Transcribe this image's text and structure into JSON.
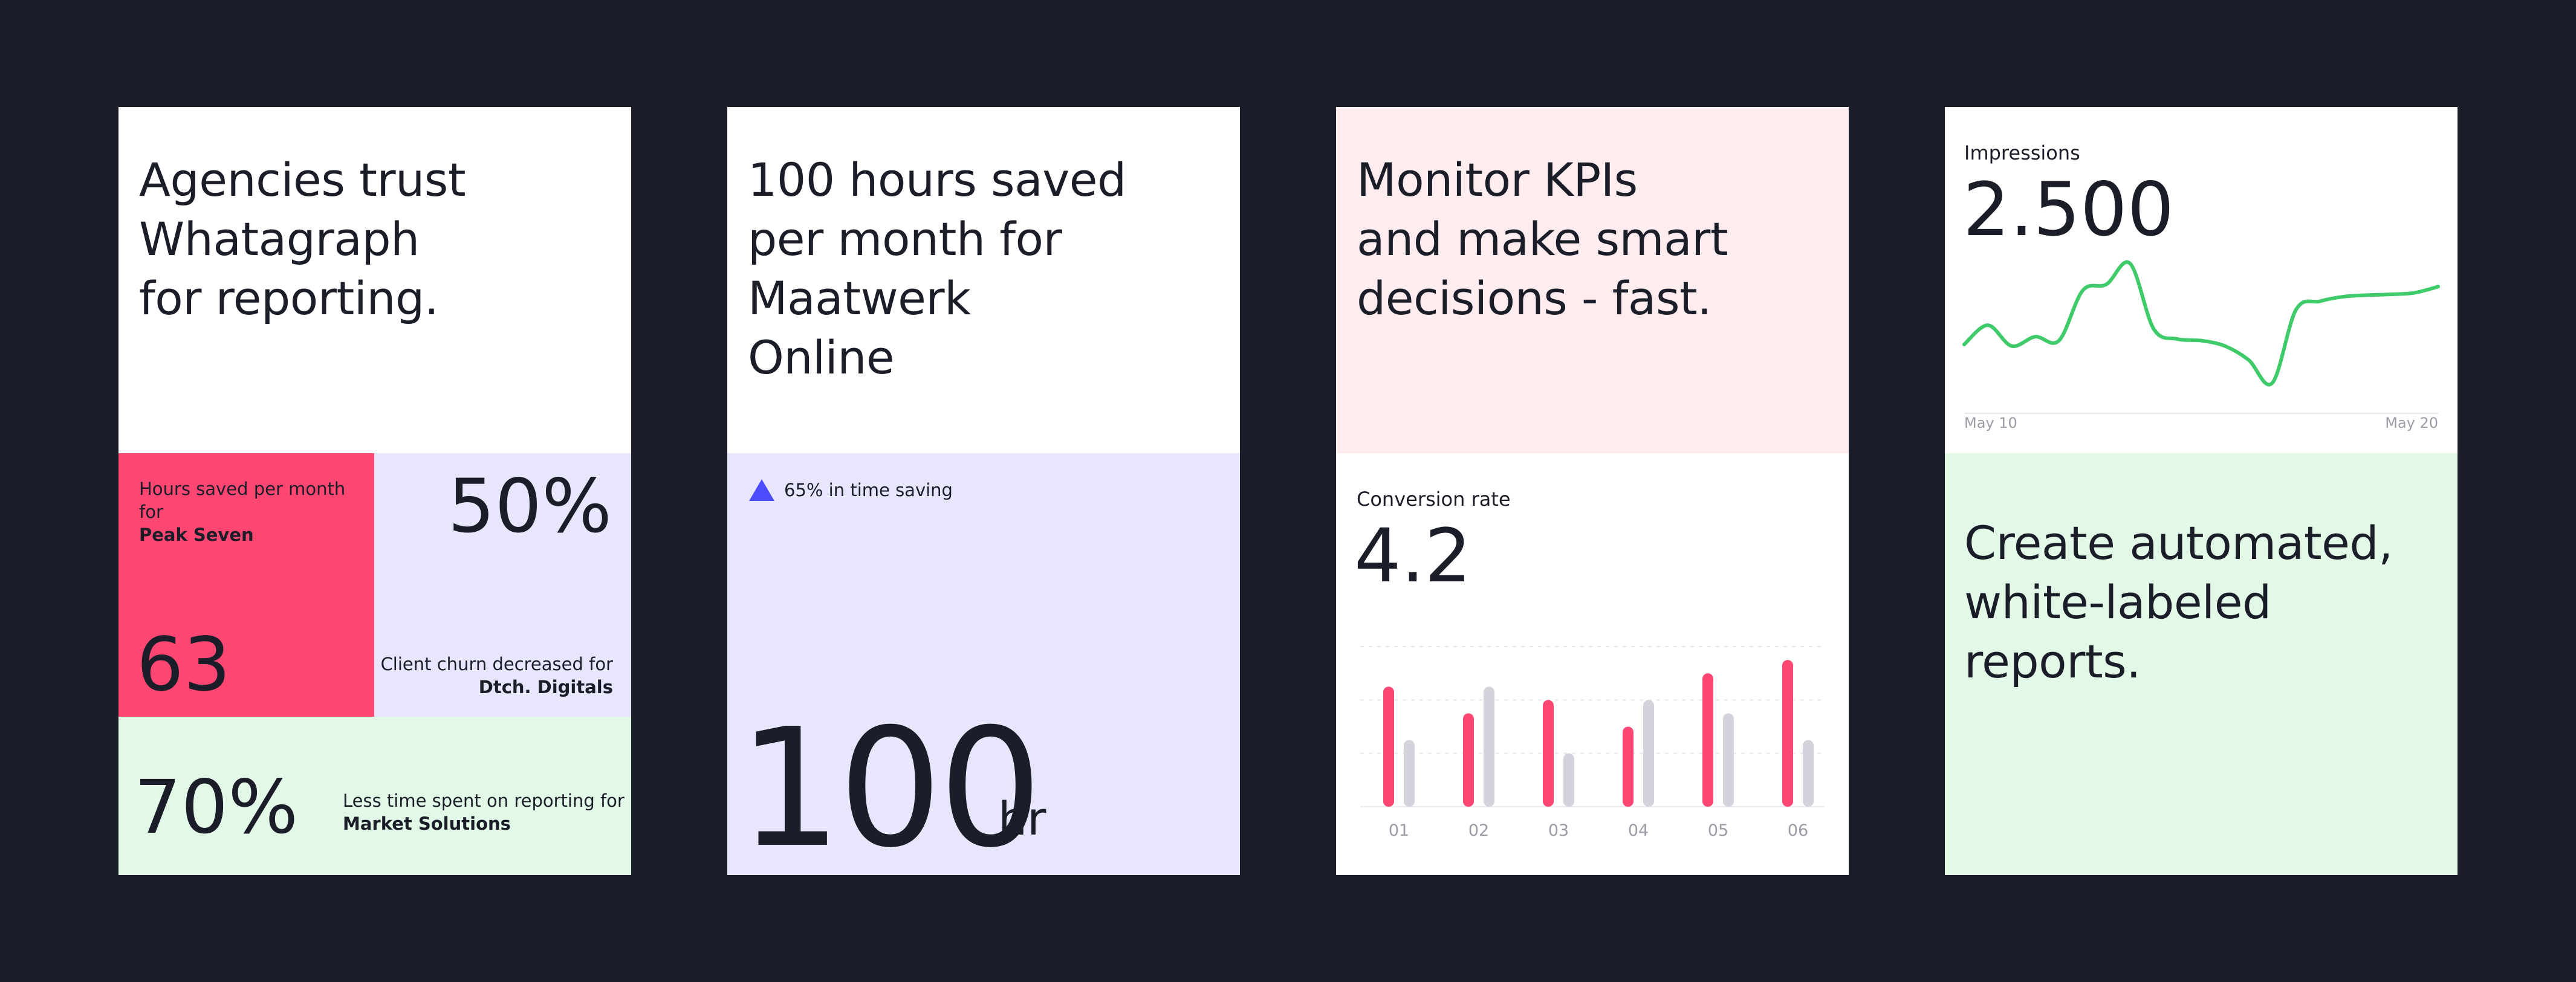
{
  "colors": {
    "background": "#1b1e29",
    "pink": "#fd4772",
    "lavender": "#e8e6fd",
    "mint": "#e3f9e8",
    "blush": "#ffecee",
    "gray_bar": "#d3d3db",
    "green_line": "#3fcb69",
    "indigo": "#4c4bff"
  },
  "card1": {
    "headline": "Agencies trust\nWhatagraph\nfor reporting.",
    "tile_red": {
      "label": "Hours saved per month for",
      "client": "Peak Seven",
      "value": "63"
    },
    "tile_lavender": {
      "value": "50%",
      "label": "Client churn decreased for",
      "client": "Dtch. Digitals"
    },
    "tile_green": {
      "value": "70%",
      "label": "Less time spent on reporting for",
      "client": "Market Solutions"
    }
  },
  "card2": {
    "headline": "100 hours saved\nper month for\nMaatwerk\nOnline",
    "trend_icon": "triangle-up-icon",
    "trend_text": "65% in time saving",
    "big_value": "100",
    "unit": "hr"
  },
  "card3": {
    "headline": "Monitor KPIs\nand make smart\ndecisions - fast.",
    "metric_label": "Conversion rate",
    "metric_value": "4.2",
    "chart_data": {
      "type": "bar",
      "categories": [
        "01",
        "02",
        "03",
        "04",
        "05",
        "06"
      ],
      "series": [
        {
          "values": [
            90,
            70,
            80,
            60,
            100,
            110
          ]
        },
        {
          "values": [
            50,
            90,
            40,
            80,
            70,
            50
          ]
        }
      ],
      "ylim": [
        0,
        120
      ],
      "grid": true
    }
  },
  "card4": {
    "metric_label": "Impressions",
    "metric_value": "2.500",
    "headline": "Create automated,\nwhite-labeled\nreports.",
    "chart_data": {
      "type": "line",
      "x": [
        0,
        1,
        2,
        3,
        4,
        5,
        6,
        7,
        8,
        9,
        10,
        11,
        12,
        13,
        14,
        15,
        16,
        17,
        18,
        19,
        20
      ],
      "y": [
        1800,
        2050,
        1780,
        1900,
        1850,
        2500,
        2580,
        2850,
        2000,
        1870,
        1850,
        1780,
        1600,
        1300,
        2250,
        2360,
        2420,
        2440,
        2450,
        2470,
        2550
      ],
      "x_tick_labels": [
        "May 10",
        "May 20"
      ],
      "ylim": [
        1000,
        3000
      ],
      "grid": false
    }
  }
}
